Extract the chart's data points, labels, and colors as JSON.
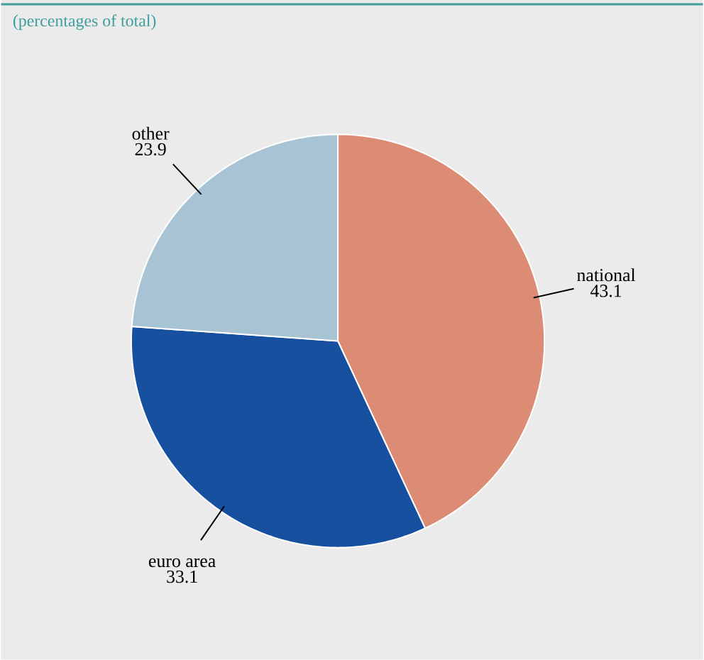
{
  "chart_data": {
    "type": "pie",
    "subtitle": "(percentages of total)",
    "categories": [
      "national",
      "euro area",
      "other"
    ],
    "values": [
      43.1,
      33.1,
      23.9
    ],
    "colors": [
      "#dc8c74",
      "#1850a0",
      "#a8c4d4"
    ],
    "data_labels": true
  }
}
